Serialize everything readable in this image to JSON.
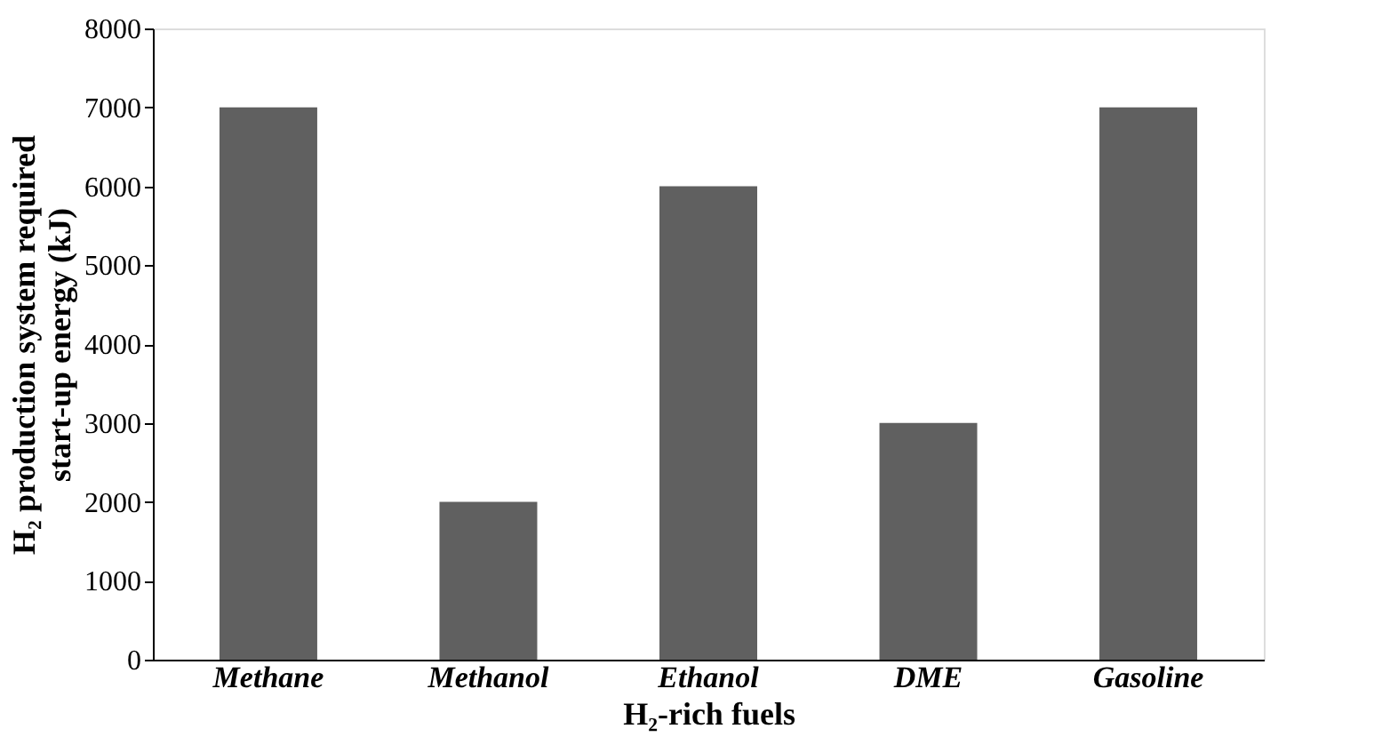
{
  "chart_data": {
    "type": "bar",
    "categories": [
      "Methane",
      "Methanol",
      "Ethanol",
      "DME",
      "Gasoline"
    ],
    "values": [
      7000,
      2000,
      6000,
      3000,
      7000
    ],
    "color": "#606060",
    "xlabel": "H₂-rich fuels",
    "ylabel": "H₂ production system required\nstart-up energy (kJ)",
    "ylim": [
      0,
      8000
    ],
    "yticks": [
      0,
      1000,
      2000,
      3000,
      4000,
      5000,
      6000,
      7000,
      8000
    ],
    "grid": false
  }
}
